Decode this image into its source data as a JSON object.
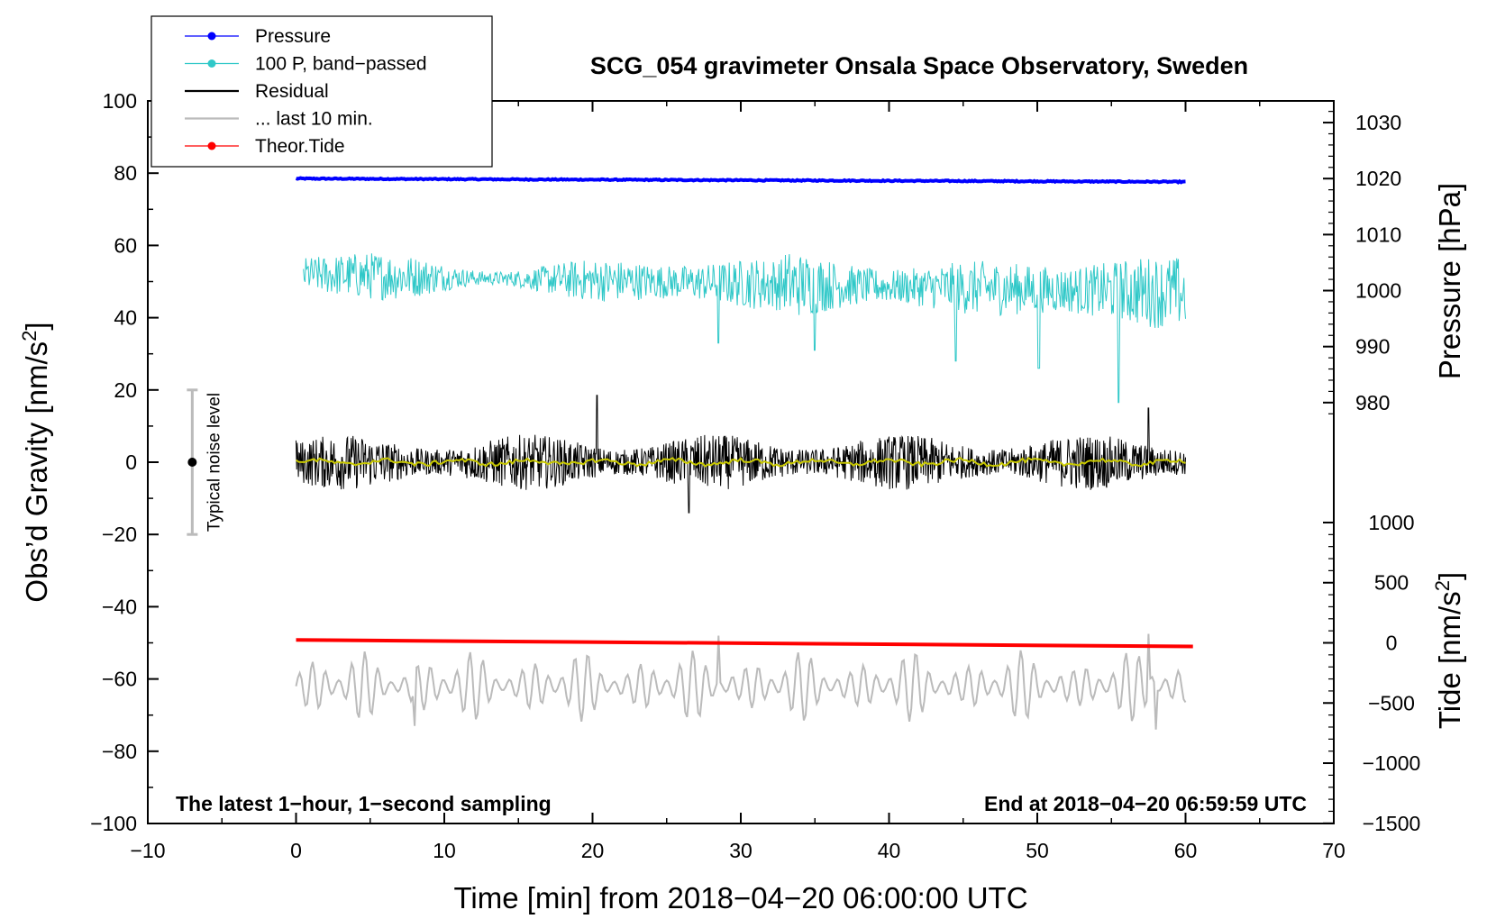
{
  "chart_data": {
    "type": "line",
    "title": "SCG_054 gravimeter Onsala Space Observatory, Sweden",
    "xlabel": "Time [min] from 2018−04−20 06:00:00 UTC",
    "ylabel_left": "Obs’d Gravity [nm/s",
    "ylabel_left_sup": "2",
    "ylabel_left_close": "]",
    "ylabel_pressure": "Pressure [hPa]",
    "ylabel_tide": "Tide [nm/s",
    "ylabel_tide_sup": "2",
    "ylabel_tide_close": "]",
    "xlim": [
      -10,
      70
    ],
    "ylim": [
      -100,
      100
    ],
    "x_ticks": [
      "−10",
      "0",
      "10",
      "20",
      "30",
      "40",
      "50",
      "60",
      "70"
    ],
    "x_tick_values": [
      -10,
      0,
      10,
      20,
      30,
      40,
      50,
      60,
      70
    ],
    "y_ticks": [
      "100",
      "80",
      "60",
      "40",
      "20",
      "0",
      "−20",
      "−40",
      "−60",
      "−80",
      "−100"
    ],
    "y_tick_values": [
      100,
      80,
      60,
      40,
      20,
      0,
      -20,
      -40,
      -60,
      -80,
      -100
    ],
    "pressure_axis": {
      "ticks": [
        "1030",
        "1020",
        "1010",
        "1000",
        "990",
        "980"
      ],
      "tick_values": [
        1030,
        1020,
        1010,
        1000,
        990,
        980
      ],
      "gravity_of_1020": 78.5,
      "gravity_per_hpa": 1.55
    },
    "tide_axis": {
      "ticks": [
        "1000",
        "500",
        "0",
        "−500",
        "−1000",
        "−1500"
      ],
      "tick_values": [
        1000,
        500,
        0,
        -500,
        -1000,
        -1500
      ],
      "gravity_of_0": -50,
      "gravity_per_unit": 0.0333
    },
    "annotation_left": "The latest 1−hour, 1−second sampling",
    "annotation_right": "End at 2018−04−20 06:59:59 UTC",
    "noise_label": "Typical noise level",
    "noise_bar": {
      "x": -7,
      "center": 0,
      "half_range": 20
    },
    "legend": [
      {
        "label": "Pressure",
        "color": "#0000ff",
        "marker": true
      },
      {
        "label": "100 P, band−passed",
        "color": "#30c8c8",
        "marker": true
      },
      {
        "label": "Residual",
        "color": "#000000",
        "marker": false
      },
      {
        "label": "... last 10 min.",
        "color": "#bbbbbb",
        "marker": false
      },
      {
        "label": "Theor.Tide",
        "color": "#ff0000",
        "marker": true
      }
    ],
    "series": [
      {
        "name": "Pressure",
        "color": "#0000ff",
        "x_range": [
          0,
          60
        ],
        "start": 78.5,
        "end": 77.6,
        "noise": 0.3
      },
      {
        "name": "100 P, band−passed",
        "color": "#30c8c8",
        "x_range": [
          0.5,
          60
        ],
        "mean": 52,
        "amplitude": 6,
        "spikes": [
          [
            28.5,
            33
          ],
          [
            44.5,
            28
          ],
          [
            50.1,
            26
          ],
          [
            55.5,
            16.5
          ],
          [
            35,
            31
          ]
        ]
      },
      {
        "name": "Residual",
        "color": "#000000",
        "x_range": [
          0,
          60
        ],
        "mean": 0,
        "amplitude": 7,
        "peaks": [
          [
            20.3,
            18.5
          ],
          [
            57.5,
            15
          ],
          [
            26.5,
            -14
          ],
          [
            0,
            6
          ]
        ]
      },
      {
        "name": "Residual smoothed",
        "color": "#c8c800",
        "x_range": [
          0,
          60
        ],
        "mean": 0,
        "amplitude": 1.2
      },
      {
        "name": "... last 10 min.",
        "color": "#bbbbbb",
        "x_range": [
          0,
          60
        ],
        "mean": -62,
        "amplitude": 6,
        "extremes": [
          [
            28.5,
            -48
          ],
          [
            57.5,
            -47.5
          ],
          [
            8,
            -73
          ],
          [
            58,
            -74
          ]
        ]
      },
      {
        "name": "Theor.Tide",
        "color": "#ff0000",
        "x_range": [
          0,
          60.5
        ],
        "start": -49.2,
        "end": -51.0
      }
    ]
  }
}
